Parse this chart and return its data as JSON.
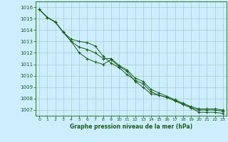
{
  "title": "Graphe pression niveau de la mer (hPa)",
  "bg_color": "#cceeff",
  "grid_color": "#aacccc",
  "line_color": "#1a5c1a",
  "marker_color": "#1a5c1a",
  "xlim": [
    -0.5,
    23.5
  ],
  "ylim": [
    1006.5,
    1016.5
  ],
  "yticks": [
    1007,
    1008,
    1009,
    1010,
    1011,
    1012,
    1013,
    1014,
    1015,
    1016
  ],
  "xticks": [
    0,
    1,
    2,
    3,
    4,
    5,
    6,
    7,
    8,
    9,
    10,
    11,
    12,
    13,
    14,
    15,
    16,
    17,
    18,
    19,
    20,
    21,
    22,
    23
  ],
  "line1": [
    1015.8,
    1015.1,
    1014.7,
    1013.8,
    1013.0,
    1012.0,
    1011.5,
    1011.2,
    1011.0,
    1011.4,
    1010.8,
    1010.4,
    1009.5,
    1009.0,
    1008.4,
    1008.3,
    1008.1,
    1007.8,
    1007.5,
    1007.2,
    1006.8,
    1006.8,
    1006.8,
    1006.7
  ],
  "line2": [
    1015.8,
    1015.1,
    1014.7,
    1013.8,
    1013.2,
    1013.0,
    1012.9,
    1012.6,
    1011.7,
    1011.1,
    1010.7,
    1010.1,
    1009.6,
    1009.3,
    1008.6,
    1008.3,
    1008.1,
    1007.8,
    1007.5,
    1007.2,
    1007.0,
    1007.0,
    1007.0,
    1006.9
  ],
  "line3": [
    1015.8,
    1015.1,
    1014.7,
    1013.8,
    1013.0,
    1012.5,
    1012.3,
    1012.0,
    1011.5,
    1011.5,
    1010.9,
    1010.5,
    1009.8,
    1009.5,
    1008.8,
    1008.5,
    1008.2,
    1007.9,
    1007.6,
    1007.3,
    1007.1,
    1007.1,
    1007.1,
    1007.0
  ]
}
